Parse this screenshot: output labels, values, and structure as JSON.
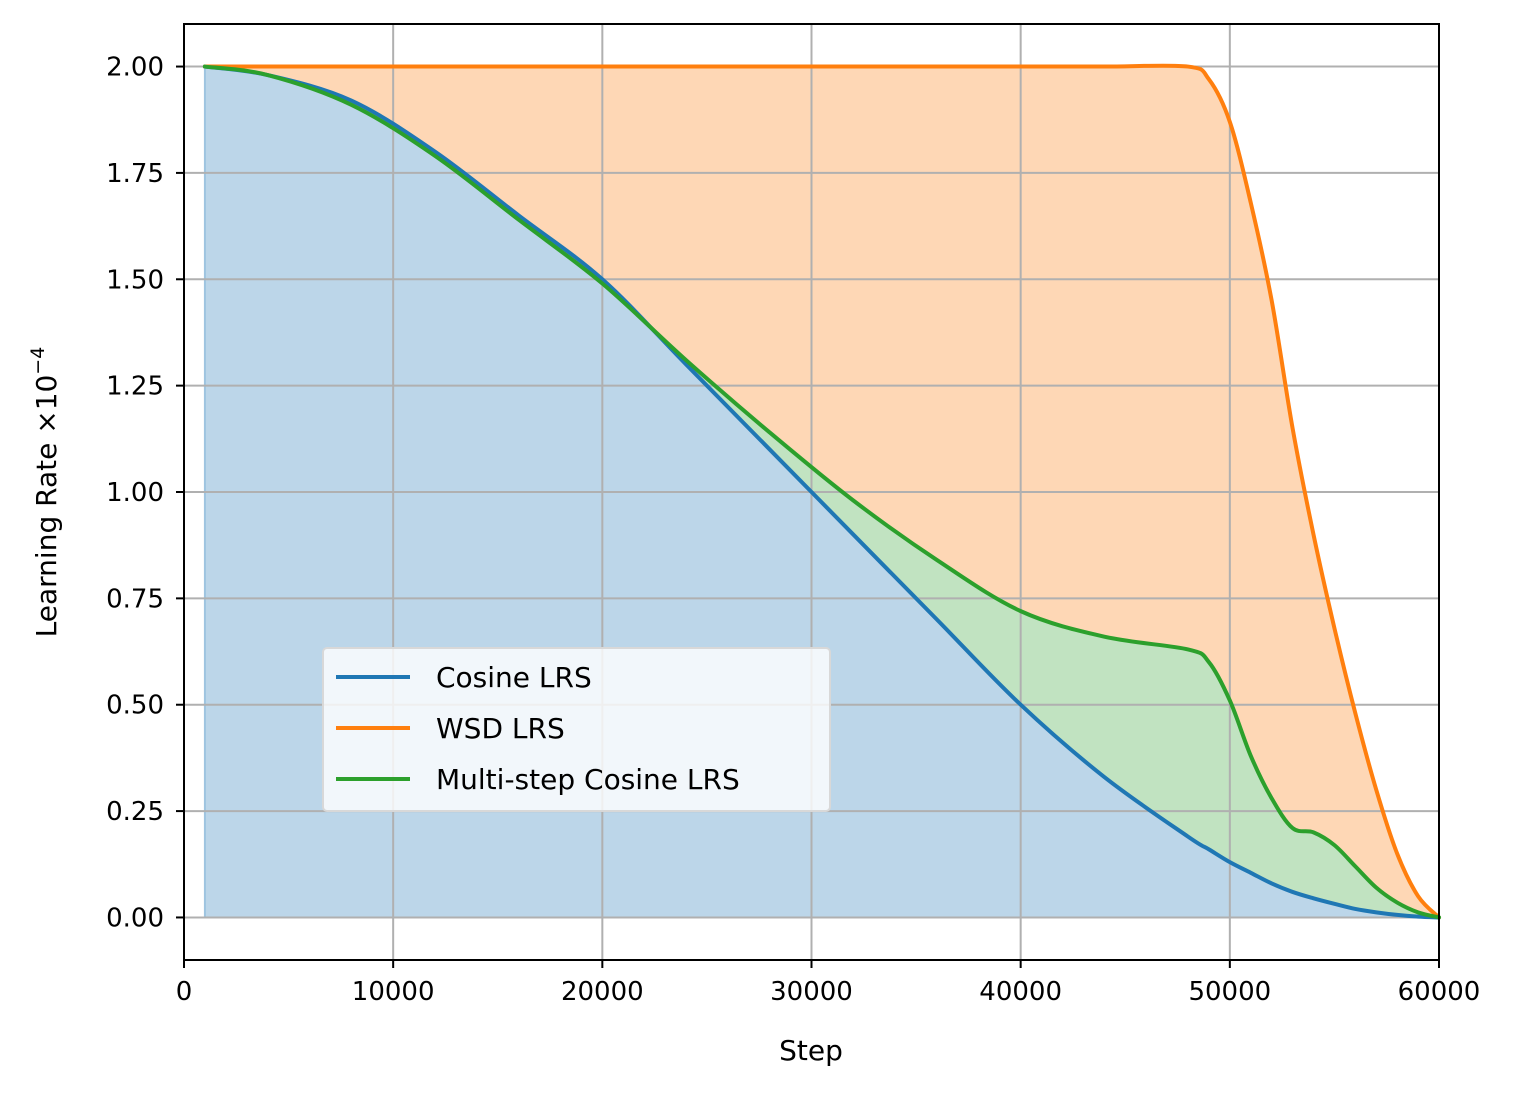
{
  "chart_data": {
    "type": "line",
    "title": "",
    "xlabel": "Step",
    "ylabel": "Learning Rate ×10",
    "ylabel_exponent": "−4",
    "xlim": [
      0,
      60000
    ],
    "ylim": [
      -0.1,
      2.1
    ],
    "grid": true,
    "legend_position": "lower-left",
    "x_ticks": [
      "0",
      "10000",
      "20000",
      "30000",
      "40000",
      "50000",
      "60000"
    ],
    "y_ticks": [
      "0.00",
      "0.25",
      "0.50",
      "0.75",
      "1.00",
      "1.25",
      "1.50",
      "1.75",
      "2.00"
    ],
    "x_tick_values": [
      0,
      10000,
      20000,
      30000,
      40000,
      50000,
      60000
    ],
    "y_tick_values": [
      0,
      0.25,
      0.5,
      0.75,
      1.0,
      1.25,
      1.5,
      1.75,
      2.0
    ],
    "x": [
      1000,
      4000,
      8000,
      12000,
      16000,
      20000,
      24000,
      28000,
      32000,
      36000,
      40000,
      44000,
      48000,
      49000,
      50000,
      51000,
      52000,
      53000,
      54000,
      55000,
      56000,
      57000,
      58000,
      59000,
      60000
    ],
    "series": [
      {
        "name": "Cosine LRS",
        "color": "#1f77b4",
        "fill": "#bcd6e9",
        "values": [
          2.0,
          1.98,
          1.92,
          1.8,
          1.65,
          1.5,
          1.3,
          1.1,
          0.9,
          0.7,
          0.5,
          0.33,
          0.19,
          0.16,
          0.13,
          0.105,
          0.08,
          0.06,
          0.045,
          0.032,
          0.02,
          0.012,
          0.006,
          0.002,
          0.0
        ]
      },
      {
        "name": "WSD LRS",
        "color": "#ff7f0e",
        "fill": "#fed7b5",
        "values": [
          2.0,
          2.0,
          2.0,
          2.0,
          2.0,
          2.0,
          2.0,
          2.0,
          2.0,
          2.0,
          2.0,
          2.0,
          2.0,
          1.97,
          1.87,
          1.68,
          1.45,
          1.15,
          0.9,
          0.68,
          0.48,
          0.3,
          0.15,
          0.05,
          0.0
        ]
      },
      {
        "name": "Multi-step Cosine LRS",
        "color": "#2ca02c",
        "fill": "#c1e3c1",
        "values": [
          2.0,
          1.98,
          1.91,
          1.79,
          1.64,
          1.49,
          1.31,
          1.14,
          0.98,
          0.84,
          0.72,
          0.66,
          0.63,
          0.6,
          0.51,
          0.38,
          0.28,
          0.21,
          0.2,
          0.17,
          0.12,
          0.07,
          0.035,
          0.012,
          0.0
        ]
      }
    ]
  }
}
